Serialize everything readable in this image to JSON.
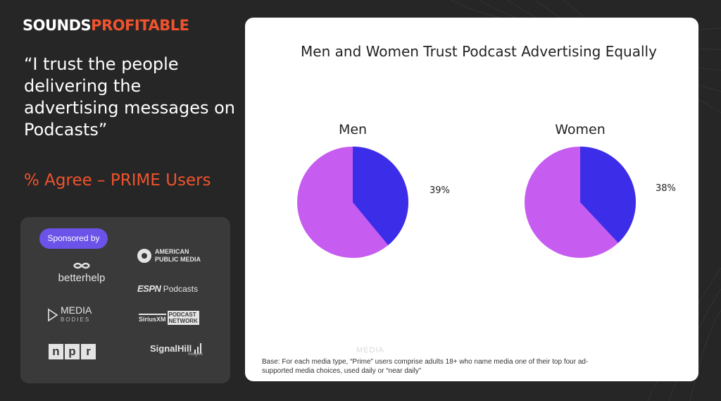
{
  "brand": {
    "part1": "SOUNDS",
    "part2": "PROFITABLE"
  },
  "quote": "“I trust the people delivering the advertising messages on Podcasts”",
  "subtitle": "% Agree – PRIME Users",
  "sponsors": {
    "badge": "Sponsored by",
    "betterhelp": "betterhelp",
    "apm_line1": "AMERICAN",
    "apm_line2": "PUBLIC MEDIA",
    "espn_mark": "ESPN",
    "espn_text": "Podcasts",
    "media_line1": "MEDIA",
    "media_line2": "BODIES",
    "sirius_a": "SiriusXM",
    "sirius_b1": "PODCAST",
    "sirius_b2": "NETWORK",
    "npr": [
      "n",
      "p",
      "r"
    ],
    "signal": "SignalHill",
    "signal_sub": "Insights"
  },
  "chart_data": {
    "type": "pie",
    "title": "Men and Women Trust Podcast Advertising Equally",
    "colors": {
      "agree": "#3c2ee8",
      "other": "#c65cf0"
    },
    "pies": [
      {
        "name": "Men",
        "agree_pct": 39,
        "label": "39%"
      },
      {
        "name": "Women",
        "agree_pct": 38,
        "label": "38%"
      }
    ],
    "footnote": "Base: For each media type, “Prime” users comprise adults 18+ who name media one of their top four ad-supported media choices, used daily or “near daily”",
    "watermark": "MEDIA"
  }
}
